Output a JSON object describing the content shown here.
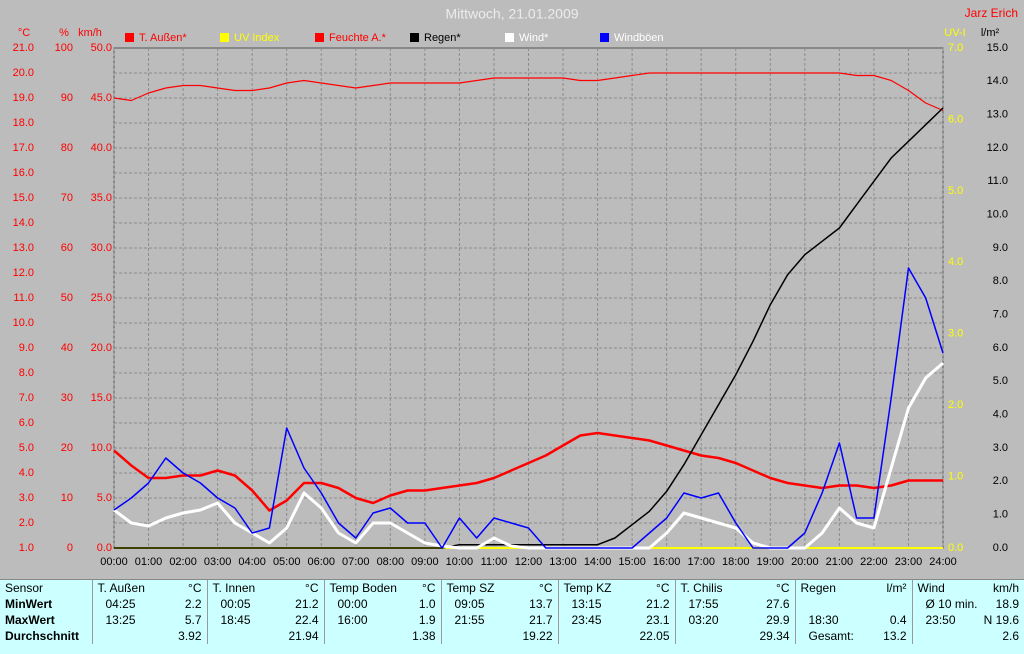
{
  "chart_data": {
    "type": "line",
    "title": "Mittwoch, 21.01.2009",
    "author": "Jarz Erich",
    "grid": true,
    "grid_axis": "temp",
    "xlim": [
      0,
      24
    ],
    "xticks": [
      {
        "value": 0,
        "label": "00:00"
      },
      {
        "value": 1,
        "label": "01:00"
      },
      {
        "value": 2,
        "label": "02:00"
      },
      {
        "value": 3,
        "label": "03:00"
      },
      {
        "value": 4,
        "label": "04:00"
      },
      {
        "value": 5,
        "label": "05:00"
      },
      {
        "value": 6,
        "label": "06:00"
      },
      {
        "value": 7,
        "label": "07:00"
      },
      {
        "value": 8,
        "label": "08:00"
      },
      {
        "value": 9,
        "label": "09:00"
      },
      {
        "value": 10,
        "label": "10:00"
      },
      {
        "value": 11,
        "label": "11:00"
      },
      {
        "value": 12,
        "label": "12:00"
      },
      {
        "value": 13,
        "label": "13:00"
      },
      {
        "value": 14,
        "label": "14:00"
      },
      {
        "value": 15,
        "label": "15:00"
      },
      {
        "value": 16,
        "label": "16:00"
      },
      {
        "value": 17,
        "label": "17:00"
      },
      {
        "value": 18,
        "label": "18:00"
      },
      {
        "value": 19,
        "label": "19:00"
      },
      {
        "value": 20,
        "label": "20:00"
      },
      {
        "value": 21,
        "label": "21:00"
      },
      {
        "value": 22,
        "label": "22:00"
      },
      {
        "value": 23,
        "label": "23:00"
      },
      {
        "value": 24,
        "label": "24:00"
      }
    ],
    "axes": {
      "temp": {
        "label": "°C",
        "color": "#ff0000",
        "lim": [
          1,
          21
        ],
        "ticks": [
          {
            "value": 1,
            "label": "1.0"
          },
          {
            "value": 2,
            "label": "2.0"
          },
          {
            "value": 3,
            "label": "3.0"
          },
          {
            "value": 4,
            "label": "4.0"
          },
          {
            "value": 5,
            "label": "5.0"
          },
          {
            "value": 6,
            "label": "6.0"
          },
          {
            "value": 7,
            "label": "7.0"
          },
          {
            "value": 8,
            "label": "8.0"
          },
          {
            "value": 9,
            "label": "9.0"
          },
          {
            "value": 10,
            "label": "10.0"
          },
          {
            "value": 11,
            "label": "11.0"
          },
          {
            "value": 12,
            "label": "12.0"
          },
          {
            "value": 13,
            "label": "13.0"
          },
          {
            "value": 14,
            "label": "14.0"
          },
          {
            "value": 15,
            "label": "15.0"
          },
          {
            "value": 16,
            "label": "16.0"
          },
          {
            "value": 17,
            "label": "17.0"
          },
          {
            "value": 18,
            "label": "18.0"
          },
          {
            "value": 19,
            "label": "19.0"
          },
          {
            "value": 20,
            "label": "20.0"
          },
          {
            "value": 21,
            "label": "21.0"
          }
        ]
      },
      "hum": {
        "label": "%",
        "color": "#ff0000",
        "lim": [
          0,
          100
        ],
        "ticks": [
          0,
          10,
          20,
          30,
          40,
          50,
          60,
          70,
          80,
          90,
          100
        ]
      },
      "wind": {
        "label": "km/h",
        "color": "#ff0000",
        "lim": [
          0,
          50
        ],
        "ticks": [
          {
            "value": 0,
            "label": "0.0"
          },
          {
            "value": 5,
            "label": "5.0"
          },
          {
            "value": 10,
            "label": "10.0"
          },
          {
            "value": 15,
            "label": "15.0"
          },
          {
            "value": 20,
            "label": "20.0"
          },
          {
            "value": 25,
            "label": "25.0"
          },
          {
            "value": 30,
            "label": "30.0"
          },
          {
            "value": 35,
            "label": "35.0"
          },
          {
            "value": 40,
            "label": "40.0"
          },
          {
            "value": 45,
            "label": "45.0"
          },
          {
            "value": 50,
            "label": "50.0"
          }
        ]
      },
      "uv": {
        "label": "UV-I",
        "color": "#ffff00",
        "lim": [
          0,
          7
        ],
        "ticks": [
          {
            "value": 0,
            "label": "0.0"
          },
          {
            "value": 1,
            "label": "1.0"
          },
          {
            "value": 2,
            "label": "2.0"
          },
          {
            "value": 3,
            "label": "3.0"
          },
          {
            "value": 4,
            "label": "4.0"
          },
          {
            "value": 5,
            "label": "5.0"
          },
          {
            "value": 6,
            "label": "6.0"
          },
          {
            "value": 7,
            "label": "7.0"
          }
        ]
      },
      "rain": {
        "label": "l/m²",
        "color": "#000000",
        "lim": [
          0,
          15
        ],
        "ticks": [
          {
            "value": 0,
            "label": "0.0"
          },
          {
            "value": 1,
            "label": "1.0"
          },
          {
            "value": 2,
            "label": "2.0"
          },
          {
            "value": 3,
            "label": "3.0"
          },
          {
            "value": 4,
            "label": "4.0"
          },
          {
            "value": 5,
            "label": "5.0"
          },
          {
            "value": 6,
            "label": "6.0"
          },
          {
            "value": 7,
            "label": "7.0"
          },
          {
            "value": 8,
            "label": "8.0"
          },
          {
            "value": 9,
            "label": "9.0"
          },
          {
            "value": 10,
            "label": "10.0"
          },
          {
            "value": 11,
            "label": "11.0"
          },
          {
            "value": 12,
            "label": "12.0"
          },
          {
            "value": 13,
            "label": "13.0"
          },
          {
            "value": 14,
            "label": "14.0"
          },
          {
            "value": 15,
            "label": "15.0"
          }
        ]
      }
    },
    "x": [
      0,
      0.5,
      1,
      1.5,
      2,
      2.5,
      3,
      3.5,
      4,
      4.5,
      5,
      5.5,
      6,
      6.5,
      7,
      7.5,
      8,
      8.5,
      9,
      9.5,
      10,
      10.5,
      11,
      11.5,
      12,
      12.5,
      13,
      13.5,
      14,
      14.5,
      15,
      15.5,
      16,
      16.5,
      17,
      17.5,
      18,
      18.5,
      19,
      19.5,
      20,
      20.5,
      21,
      21.5,
      22,
      22.5,
      23,
      23.5,
      24
    ],
    "series": [
      {
        "name": "T. Außen*",
        "color": "#ff0000",
        "legend_text_color": "#ff0000",
        "axis": "temp",
        "values": [
          4.9,
          4.3,
          3.8,
          3.8,
          3.9,
          3.9,
          4.1,
          3.9,
          3.3,
          2.5,
          2.9,
          3.6,
          3.6,
          3.4,
          3.0,
          2.8,
          3.1,
          3.3,
          3.3,
          3.4,
          3.5,
          3.6,
          3.8,
          4.1,
          4.4,
          4.7,
          5.1,
          5.5,
          5.6,
          5.5,
          5.4,
          5.3,
          5.1,
          4.9,
          4.7,
          4.6,
          4.4,
          4.1,
          3.8,
          3.6,
          3.5,
          3.4,
          3.5,
          3.5,
          3.4,
          3.5,
          3.7,
          3.7,
          3.7
        ]
      },
      {
        "name": "UV Index",
        "color": "#ffff00",
        "legend_text_color": "#ffff00",
        "axis": "uv",
        "x": [
          0,
          24
        ],
        "values": [
          0,
          0
        ]
      },
      {
        "name": "Feuchte A.*",
        "color": "#ff0000",
        "legend_text_color": "#ff0000",
        "axis": "hum",
        "values": [
          90,
          89.5,
          91,
          92,
          92.5,
          92.5,
          92,
          91.5,
          91.5,
          92,
          93,
          93.5,
          93,
          92.5,
          92,
          92.5,
          93,
          93,
          93,
          93,
          93,
          93.5,
          94,
          94,
          94,
          94,
          94,
          93.5,
          93.5,
          94,
          94.5,
          95,
          95,
          95,
          95,
          95,
          95,
          95,
          95,
          95,
          95,
          95,
          95,
          94.5,
          94.5,
          93.5,
          91.5,
          89,
          87.5
        ]
      },
      {
        "name": "Regen*",
        "color": "#000000",
        "legend_text_color": "#000000",
        "axis": "rain",
        "values": [
          0,
          0,
          0,
          0,
          0,
          0,
          0,
          0,
          0,
          0,
          0,
          0,
          0,
          0,
          0,
          0,
          0,
          0,
          0,
          0,
          0.1,
          0.1,
          0.1,
          0.1,
          0.1,
          0.1,
          0.1,
          0.1,
          0.1,
          0.3,
          0.7,
          1.1,
          1.7,
          2.5,
          3.4,
          4.3,
          5.2,
          6.2,
          7.3,
          8.2,
          8.8,
          9.2,
          9.6,
          10.3,
          11.0,
          11.7,
          12.2,
          12.7,
          13.2
        ]
      },
      {
        "name": "Wind*",
        "color": "#ffffff",
        "legend_text_color": "#ffffff",
        "axis": "wind",
        "values": [
          3.8,
          2.5,
          2.2,
          3.0,
          3.5,
          3.8,
          4.5,
          2.5,
          1.5,
          0.5,
          2.0,
          5.5,
          4.0,
          1.5,
          0.5,
          2.5,
          2.5,
          1.5,
          0.5,
          0.2,
          0,
          0,
          1.0,
          0.2,
          0,
          0,
          0,
          0,
          0,
          0,
          0,
          0,
          1.5,
          3.5,
          3.0,
          2.5,
          2.0,
          0.5,
          0,
          0,
          0,
          1.5,
          4.0,
          2.5,
          2.0,
          8.0,
          14.0,
          17.0,
          18.5
        ]
      },
      {
        "name": "Windböen",
        "color": "#0000ff",
        "legend_text_color": "#ffffff",
        "axis": "wind",
        "values": [
          3.8,
          5.0,
          6.5,
          9.0,
          7.5,
          6.5,
          5.0,
          4.0,
          1.5,
          2.0,
          12.0,
          8.0,
          5.5,
          2.5,
          1.0,
          3.5,
          4.0,
          2.5,
          2.5,
          0,
          3.0,
          1.0,
          3.0,
          2.5,
          2.0,
          0,
          0,
          0,
          0,
          0,
          0,
          1.5,
          3.0,
          5.5,
          5.0,
          5.5,
          2.5,
          0,
          0,
          0,
          1.5,
          5.5,
          10.5,
          3.0,
          3.0,
          15.0,
          28.0,
          25.0,
          19.5
        ]
      }
    ]
  },
  "table": {
    "sensor_header": "Sensor",
    "row_labels": [
      "MinWert",
      "MaxWert",
      "Durchschnitt"
    ],
    "columns": [
      {
        "name": "T. Außen",
        "unit": "°C",
        "cells": [
          {
            "time": "04:25",
            "value": "2.2"
          },
          {
            "time": "13:25",
            "value": "5.7"
          },
          {
            "value": "3.92"
          }
        ]
      },
      {
        "name": "T. Innen",
        "unit": "°C",
        "cells": [
          {
            "time": "00:05",
            "value": "21.2"
          },
          {
            "time": "18:45",
            "value": "22.4"
          },
          {
            "value": "21.94"
          }
        ]
      },
      {
        "name": "Temp Boden",
        "unit": "°C",
        "cells": [
          {
            "time": "00:00",
            "value": "1.0"
          },
          {
            "time": "16:00",
            "value": "1.9"
          },
          {
            "value": "1.38"
          }
        ]
      },
      {
        "name": "Temp SZ",
        "unit": "°C",
        "cells": [
          {
            "time": "09:05",
            "value": "13.7"
          },
          {
            "time": "21:55",
            "value": "21.7"
          },
          {
            "value": "19.22"
          }
        ]
      },
      {
        "name": "Temp KZ",
        "unit": "°C",
        "cells": [
          {
            "time": "13:15",
            "value": "21.2"
          },
          {
            "time": "23:45",
            "value": "23.1"
          },
          {
            "value": "22.05"
          }
        ]
      },
      {
        "name": "T. Chilis",
        "unit": "°C",
        "cells": [
          {
            "time": "17:55",
            "value": "27.6"
          },
          {
            "time": "03:20",
            "value": "29.9"
          },
          {
            "value": "29.34"
          }
        ]
      },
      {
        "name": "Regen",
        "unit": "l/m²",
        "cells": [
          null,
          {
            "time": "18:30",
            "value": "0.4"
          },
          {
            "time": "Gesamt:",
            "value": "13.2"
          }
        ]
      },
      {
        "name": "Wind",
        "unit": "km/h",
        "cells": [
          {
            "time": "Ø 10 min.",
            "value": "18.9"
          },
          {
            "time": "23:50",
            "value": "N 19.6"
          },
          {
            "value": "2.6"
          }
        ]
      }
    ]
  }
}
